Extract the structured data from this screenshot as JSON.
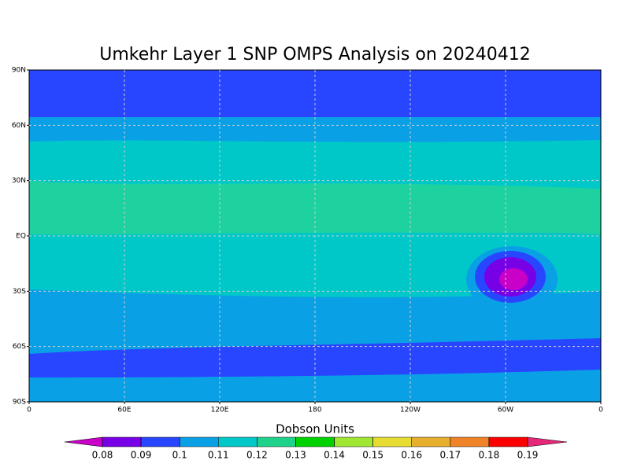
{
  "title": "Umkehr Layer 1 SNP OMPS Analysis on 20240412",
  "map": {
    "xlim": [
      0,
      360
    ],
    "ylim": [
      -90,
      90
    ],
    "xticks": [
      0,
      {
        "value": 60,
        "label": "60E"
      },
      {
        "value": 120,
        "label": "120E"
      },
      180,
      {
        "value": 240,
        "label": "120W"
      },
      {
        "value": 300,
        "label": "60W"
      },
      {
        "value": 360,
        "label": "0"
      }
    ],
    "yticks": [
      {
        "value": 90,
        "label": "90N"
      },
      {
        "value": 60,
        "label": "60N"
      },
      {
        "value": 30,
        "label": "30N"
      },
      {
        "value": 0,
        "label": "EQ"
      },
      {
        "value": -30,
        "label": "30S"
      },
      {
        "value": -60,
        "label": "60S"
      },
      {
        "value": -90,
        "label": "90S"
      }
    ],
    "grid": true
  },
  "colorbar": {
    "label": "Dobson Units",
    "levels": [
      0.08,
      0.09,
      0.1,
      0.11,
      0.12,
      0.13,
      0.14,
      0.15,
      0.16,
      0.17,
      0.18,
      0.19
    ],
    "colors": [
      "#c800c8",
      "#7800e6",
      "#2846ff",
      "#0aa0e6",
      "#00c8c8",
      "#1ed28c",
      "#00d200",
      "#a0e632",
      "#e6dc32",
      "#e6af2d",
      "#f08228",
      "#fa0000",
      "#e6287a"
    ]
  }
}
